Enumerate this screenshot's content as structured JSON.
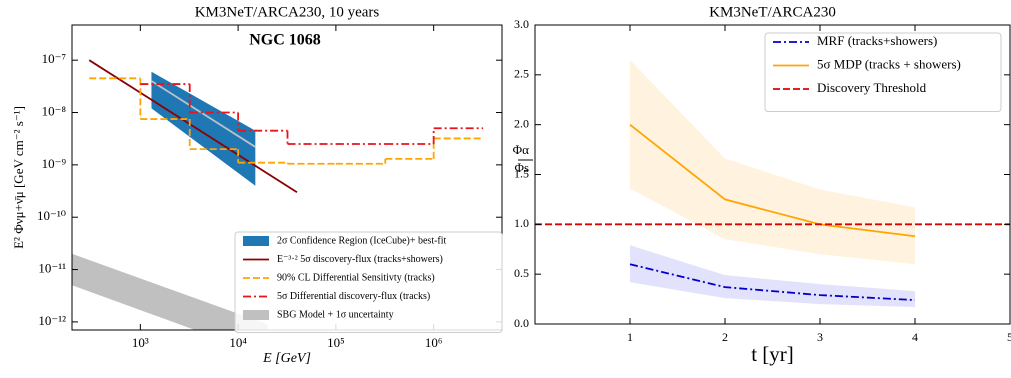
{
  "chart_data": [
    {
      "type": "line",
      "title": "KM3NeT/ARCA230, 10 years",
      "annotation": "NGC 1068",
      "xlabel": "E [GeV]",
      "ylabel": "E² Φνμ+ν̄μ [GeV cm⁻² s⁻¹]",
      "xscale": "log",
      "yscale": "log",
      "xlim": [
        200,
        5000000
      ],
      "ylim": [
        7e-13,
        4.7e-07
      ],
      "xticks": [
        {
          "value": 1000,
          "label": "10³"
        },
        {
          "value": 10000,
          "label": "10⁴"
        },
        {
          "value": 100000,
          "label": "10⁵"
        },
        {
          "value": 1000000,
          "label": "10⁶"
        }
      ],
      "yticks": [
        {
          "value": 1e-12,
          "label": "10⁻¹²"
        },
        {
          "value": 1e-11,
          "label": "10⁻¹¹"
        },
        {
          "value": 1e-10,
          "label": "10⁻¹⁰"
        },
        {
          "value": 1e-09,
          "label": "10⁻⁹"
        },
        {
          "value": 1e-08,
          "label": "10⁻⁸"
        },
        {
          "value": 1e-07,
          "label": "10⁻⁷"
        }
      ],
      "legend": "lower right",
      "series": [
        {
          "name": "2σ Confidence Region (IceCube)+ best-fit",
          "kind": "band",
          "color": "#b8c2cc",
          "band_color": "#1f77b4",
          "linestyle": "solid",
          "x": [
            1300,
            15000
          ],
          "upper": [
            6e-08,
            4.5e-09
          ],
          "lower": [
            1.2e-08,
            4e-10
          ],
          "values": [
            4e-08,
            2.2e-09
          ]
        },
        {
          "name": "E⁻³·² 5σ discovery-flux (tracks+showers)",
          "kind": "line",
          "color": "#8b0000",
          "linestyle": "solid",
          "x": [
            300,
            40000
          ],
          "values": [
            1e-07,
            3e-10
          ]
        },
        {
          "name": "90% CL Differential Sensitivty (tracks)",
          "kind": "step",
          "color": "#ffa500",
          "linestyle": "dashed",
          "bins": [
            300,
            1000,
            3200,
            10000,
            32000,
            100000,
            320000,
            1000000,
            3200000
          ],
          "values": [
            4.5e-08,
            7.5e-09,
            2e-09,
            1.1e-09,
            1.05e-09,
            1.05e-09,
            1.3e-09,
            3.2e-09
          ]
        },
        {
          "name": "5σ Differential discovery-flux (tracks)",
          "kind": "step",
          "color": "#e8141c",
          "linestyle": "dashdot",
          "bins": [
            1000,
            3200,
            10000,
            32000,
            100000,
            320000,
            1000000,
            3200000
          ],
          "values": [
            3.5e-08,
            1e-08,
            4.5e-09,
            2.5e-09,
            2.5e-09,
            2.5e-09,
            5e-09
          ]
        },
        {
          "name": "SBG Model + 1σ uncertainty",
          "kind": "band",
          "band_color": "#c0c0c0",
          "x": [
            200,
            20000
          ],
          "upper": [
            2e-11,
            9e-13
          ],
          "lower": [
            5e-12,
            2.2e-13
          ]
        }
      ]
    },
    {
      "type": "line",
      "title": "KM3NeT/ARCA230",
      "xlabel": "t [yr]",
      "ylabel": {
        "numerator": "Φα",
        "denominator": "Φs"
      },
      "xlim": [
        0,
        5
      ],
      "ylim": [
        0,
        3
      ],
      "xticks": [
        1,
        2,
        3,
        4,
        5
      ],
      "yticks": [
        {
          "value": 0,
          "label": "0.0"
        },
        0.5,
        {
          "value": 1,
          "label": "1.0"
        },
        1.5,
        {
          "value": 2,
          "label": "2.0"
        },
        2.5,
        {
          "value": 3,
          "label": "3.0"
        }
      ],
      "legend": "upper right",
      "series": [
        {
          "name": "MRF (tracks+showers)",
          "kind": "band",
          "color": "#0000cc",
          "linestyle": "dashdot",
          "band_color": "#e2e2fc",
          "x": [
            1,
            2,
            3,
            4
          ],
          "values": [
            0.6,
            0.37,
            0.29,
            0.24
          ],
          "lower": [
            0.42,
            0.26,
            0.2,
            0.17
          ],
          "upper": [
            0.79,
            0.49,
            0.4,
            0.33
          ]
        },
        {
          "name": "5σ MDP (tracks + showers)",
          "kind": "band",
          "color": "#ffa500",
          "linestyle": "solid",
          "band_color": "#fff3e0",
          "x": [
            1,
            2,
            3,
            4
          ],
          "values": [
            2.0,
            1.25,
            1.0,
            0.88
          ],
          "lower": [
            1.36,
            0.85,
            0.7,
            0.6
          ],
          "upper": [
            2.65,
            1.66,
            1.35,
            1.17
          ]
        },
        {
          "name": "Discovery Threshold",
          "kind": "hline",
          "color": "#e00000",
          "linestyle": "dashed",
          "values": [
            1.0
          ]
        }
      ]
    }
  ]
}
